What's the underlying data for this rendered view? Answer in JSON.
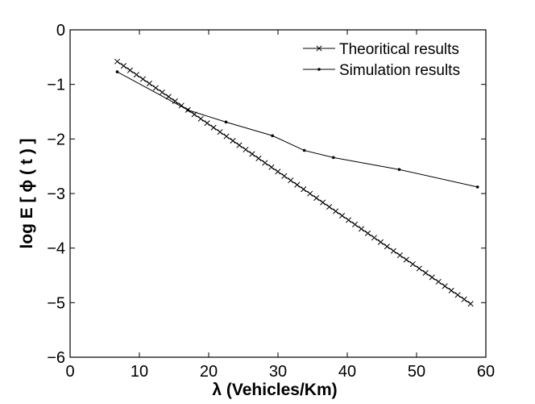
{
  "chart_data": {
    "type": "line",
    "xlabel": "λ (Vehicles/Km)",
    "ylabel": "log E [ ϕ ( t ) ]",
    "xlim": [
      0,
      60
    ],
    "ylim": [
      -6,
      0
    ],
    "xticks": [
      0,
      10,
      20,
      30,
      40,
      50,
      60
    ],
    "yticks": [
      0,
      -1,
      -2,
      -3,
      -4,
      -5,
      -6
    ],
    "xtick_labels": [
      "0",
      "10",
      "20",
      "30",
      "40",
      "50",
      "60"
    ],
    "ytick_labels": [
      "0",
      "−1",
      "−2",
      "−3",
      "−4",
      "−5",
      "−6"
    ],
    "grid": false,
    "legend": {
      "position": "top-right",
      "entries": [
        "Theoritical results",
        "Simulation results"
      ]
    },
    "series": [
      {
        "name": "Theoritical results",
        "marker": "x",
        "color": "#000000",
        "x_start": 6.8,
        "x_end": 57.8,
        "points": 56,
        "y_start": -0.58,
        "y_end": -5.02
      },
      {
        "name": "Simulation results",
        "marker": "dot",
        "color": "#000000",
        "x": [
          6.8,
          17.0,
          22.5,
          29.2,
          33.8,
          38.0,
          47.5,
          58.8
        ],
        "y": [
          -0.77,
          -1.47,
          -1.69,
          -1.94,
          -2.21,
          -2.34,
          -2.56,
          -2.88
        ]
      }
    ]
  }
}
